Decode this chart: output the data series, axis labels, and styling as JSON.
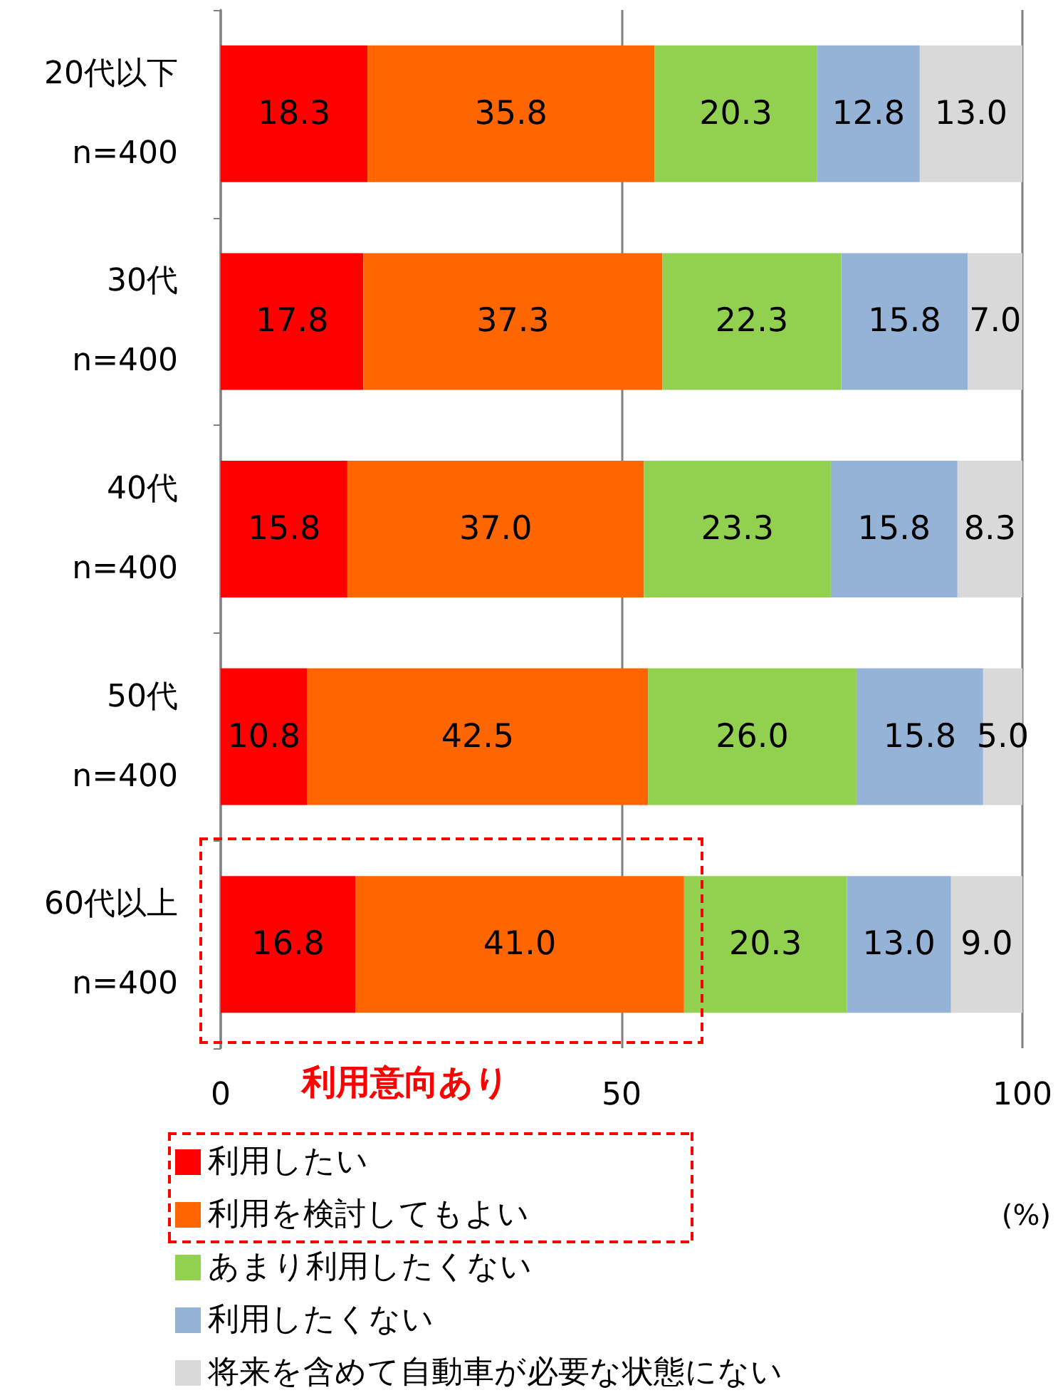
{
  "chart_data": {
    "type": "bar",
    "orientation": "horizontal",
    "stacked": true,
    "categories": [
      "20代以下\nn=400",
      "30代\nn=400",
      "40代\nn=400",
      "50代\nn=400",
      "60代以上\nn=400"
    ],
    "series": [
      {
        "name": "利用したい",
        "color": "#ff0000",
        "values": [
          18.3,
          17.8,
          15.8,
          10.8,
          16.8
        ],
        "value_labels": [
          "18.3",
          "17.8",
          "15.8",
          "10.8",
          "16.8"
        ]
      },
      {
        "name": "利用を検討してもよい",
        "color": "#ff6600",
        "values": [
          35.8,
          37.3,
          37.0,
          42.5,
          41.0
        ],
        "value_labels": [
          "35.8",
          "37.3",
          "37.0",
          "42.5",
          "41.0"
        ]
      },
      {
        "name": "あまり利用したくない",
        "color": "#92d050",
        "values": [
          20.3,
          22.3,
          23.3,
          26.0,
          20.3
        ],
        "value_labels": [
          "20.3",
          "22.3",
          "23.3",
          "26.0",
          "20.3"
        ]
      },
      {
        "name": "利用したくない",
        "color": "#95b3d7",
        "values": [
          12.8,
          15.8,
          15.8,
          15.8,
          13.0
        ],
        "value_labels": [
          "12.8",
          "15.8",
          "15.8",
          "15.8",
          "13.0"
        ]
      },
      {
        "name": "将来を含めて自動車が必要な状態にない",
        "color": "#d9d9d9",
        "values": [
          13.0,
          7.0,
          8.3,
          5.0,
          9.0
        ],
        "value_labels": [
          "13.0",
          "7.0",
          "8.3",
          "5.0",
          "9.0"
        ]
      }
    ],
    "xlim": [
      0,
      100
    ],
    "xticks": [
      0,
      50,
      100
    ],
    "xlabel": "(%)",
    "grid": "x",
    "legend": "bottom",
    "annotations": [
      "利用意向あり"
    ]
  }
}
